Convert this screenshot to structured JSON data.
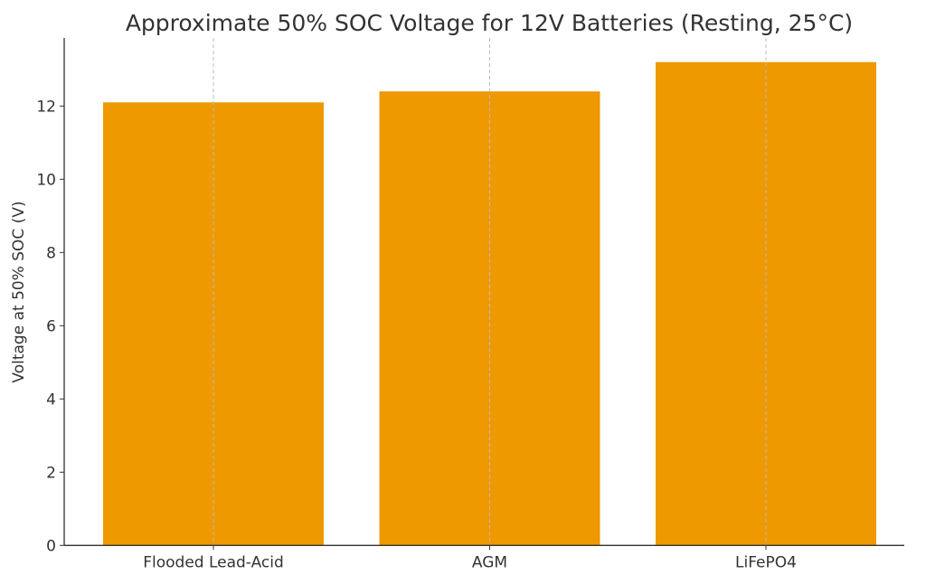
{
  "chart_data": {
    "type": "bar",
    "title": "Approximate 50% SOC Voltage for 12V Batteries (Resting, 25°C)",
    "xlabel": "",
    "ylabel": "Voltage at 50% SOC (V)",
    "categories": [
      "Flooded Lead-Acid",
      "AGM",
      "LiFePO4"
    ],
    "values": [
      12.1,
      12.4,
      13.2
    ],
    "ylim": [
      0,
      13.8
    ],
    "yticks": [
      0,
      2,
      4,
      6,
      8,
      10,
      12
    ],
    "grid": "x-axis dashed",
    "bar_color": "#ee9900"
  }
}
